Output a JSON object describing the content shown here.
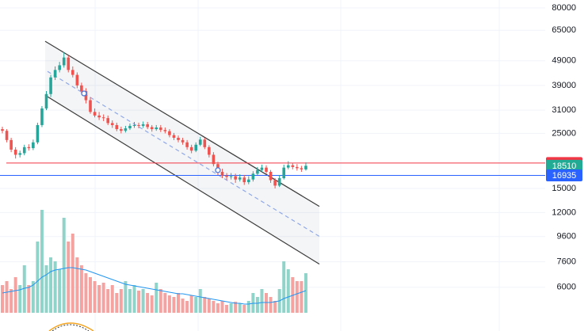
{
  "chart_data": {
    "type": "candlestick",
    "log_scale": true,
    "grid": true,
    "ylim": [
      4000,
      86100
    ],
    "yticks": [
      80000,
      65000,
      49000,
      39000,
      31000,
      25000,
      15000,
      12000,
      9600,
      7600,
      6000
    ],
    "up_color": "#26a69a",
    "down_color": "#ef5350",
    "open": [
      26000,
      25600,
      23500,
      21500,
      20500,
      20800,
      22000,
      21800,
      23000,
      27000,
      31500,
      36000,
      42000,
      45000,
      47000,
      50500,
      45000,
      43000,
      39000,
      37000,
      34000,
      30500,
      29500,
      29000,
      28800,
      27500,
      27000,
      26000,
      25600,
      26200,
      26800,
      27000,
      26800,
      27200,
      26500,
      26000,
      26400,
      25800,
      25500,
      24600,
      24000,
      23500,
      23000,
      22000,
      21300,
      22500,
      23600,
      22000,
      20500,
      18800,
      17500,
      16900,
      16700,
      16800,
      16300,
      16600,
      15900,
      16300,
      17200,
      17800,
      18200,
      17500,
      16200,
      15400,
      16500,
      18200,
      18600,
      18300,
      18100,
      17900
    ],
    "high": [
      26600,
      26000,
      24000,
      22000,
      21300,
      22500,
      22600,
      23600,
      27600,
      32200,
      37000,
      43000,
      46500,
      48500,
      53000,
      51500,
      46500,
      44000,
      40000,
      38000,
      35000,
      31500,
      30500,
      29800,
      29500,
      28200,
      27600,
      26600,
      26800,
      27400,
      27800,
      27600,
      27900,
      27800,
      27000,
      27000,
      27000,
      26400,
      26000,
      25100,
      24500,
      24000,
      23500,
      22500,
      23000,
      24200,
      24000,
      22400,
      21000,
      19200,
      18000,
      17300,
      17300,
      17200,
      17100,
      17000,
      16800,
      17600,
      18300,
      18700,
      18600,
      17800,
      16500,
      17000,
      18700,
      19300,
      19000,
      18800,
      18500,
      19100
    ],
    "low": [
      25000,
      23000,
      21000,
      19800,
      20000,
      20400,
      21300,
      21400,
      22600,
      26500,
      31000,
      35000,
      41000,
      44000,
      46000,
      44000,
      42000,
      38000,
      36000,
      33000,
      30000,
      29000,
      28300,
      28000,
      27000,
      26300,
      25500,
      25000,
      25200,
      25800,
      26300,
      26200,
      26300,
      26000,
      25400,
      25600,
      25300,
      25000,
      24100,
      23500,
      23000,
      22500,
      21500,
      20800,
      21000,
      22200,
      21600,
      20000,
      18400,
      17000,
      16500,
      16200,
      16300,
      15800,
      16000,
      15500,
      15600,
      16000,
      17000,
      17500,
      17100,
      15800,
      15000,
      15200,
      16300,
      17900,
      17900,
      17700,
      17500,
      17700
    ],
    "close": [
      25600,
      23500,
      21500,
      20500,
      20800,
      22000,
      21800,
      23000,
      27000,
      31500,
      36000,
      42000,
      45000,
      47000,
      50500,
      45000,
      43000,
      39000,
      37000,
      34000,
      30500,
      29500,
      29000,
      28800,
      27500,
      27000,
      26000,
      25600,
      26200,
      26800,
      27000,
      26800,
      27200,
      26500,
      26000,
      26400,
      25800,
      25500,
      24600,
      24000,
      23500,
      23000,
      22000,
      21300,
      22500,
      23600,
      22000,
      20500,
      18800,
      17500,
      16900,
      16700,
      16800,
      16300,
      16600,
      15900,
      16300,
      17200,
      17800,
      18200,
      17500,
      16200,
      15400,
      16500,
      18200,
      18600,
      18300,
      18100,
      17900,
      18510
    ],
    "vlim": [
      0,
      150
    ],
    "volume": [
      35,
      40,
      30,
      45,
      35,
      60,
      35,
      40,
      90,
      130,
      60,
      70,
      65,
      55,
      120,
      90,
      100,
      70,
      60,
      50,
      45,
      40,
      35,
      38,
      30,
      35,
      25,
      30,
      40,
      30,
      35,
      28,
      30,
      25,
      22,
      38,
      30,
      25,
      22,
      20,
      25,
      18,
      15,
      22,
      20,
      30,
      20,
      18,
      15,
      12,
      15,
      10,
      12,
      14,
      12,
      10,
      15,
      25,
      20,
      30,
      25,
      20,
      15,
      30,
      65,
      55,
      45,
      40,
      40,
      50
    ],
    "volume_up_color": "#8fd3c9",
    "volume_down_color": "#f5a3a1",
    "volume_ma": [
      25,
      26,
      27,
      28,
      29,
      31,
      32,
      35,
      40,
      45,
      48,
      52,
      54,
      55,
      56,
      57,
      57,
      56,
      55,
      54,
      52,
      50,
      48,
      46,
      44,
      42,
      40,
      38,
      36,
      35,
      34,
      33,
      32,
      31,
      30,
      29,
      28,
      27,
      26,
      25,
      24,
      24,
      23,
      22,
      21,
      20,
      19,
      18,
      17,
      16,
      15,
      14,
      13,
      12,
      12,
      11,
      11,
      12,
      12,
      13,
      13,
      13,
      14,
      15,
      18,
      20,
      22,
      24,
      26,
      28
    ],
    "volume_ma_color": "#2196f3",
    "drawings": [
      {
        "x": [
          9.73,
          72.07
        ],
        "y": [
          58700,
          12700
        ],
        "color": "#3a3a3a",
        "dashed": false
      },
      {
        "x": [
          9.73,
          72.07
        ],
        "y": [
          35600,
          7440
        ],
        "color": "#3a3a3a",
        "dashed": false
      },
      {
        "x": [
          10.27,
          72.07
        ],
        "y": [
          44400,
          9620
        ],
        "color": "#8fa8e8",
        "dashed": true
      }
    ],
    "anchors": {
      "x": [
        18.56,
        49.0
      ],
      "y": [
        36200,
        17770
      ],
      "color": "#4a78d8"
    },
    "price_lines": [
      {
        "value": 18991,
        "color": "#f23645",
        "line": true
      },
      {
        "value": 18510,
        "color": "#22ab94",
        "line": false
      },
      {
        "value": 16935,
        "color": "#2962ff",
        "line": true
      }
    ]
  }
}
